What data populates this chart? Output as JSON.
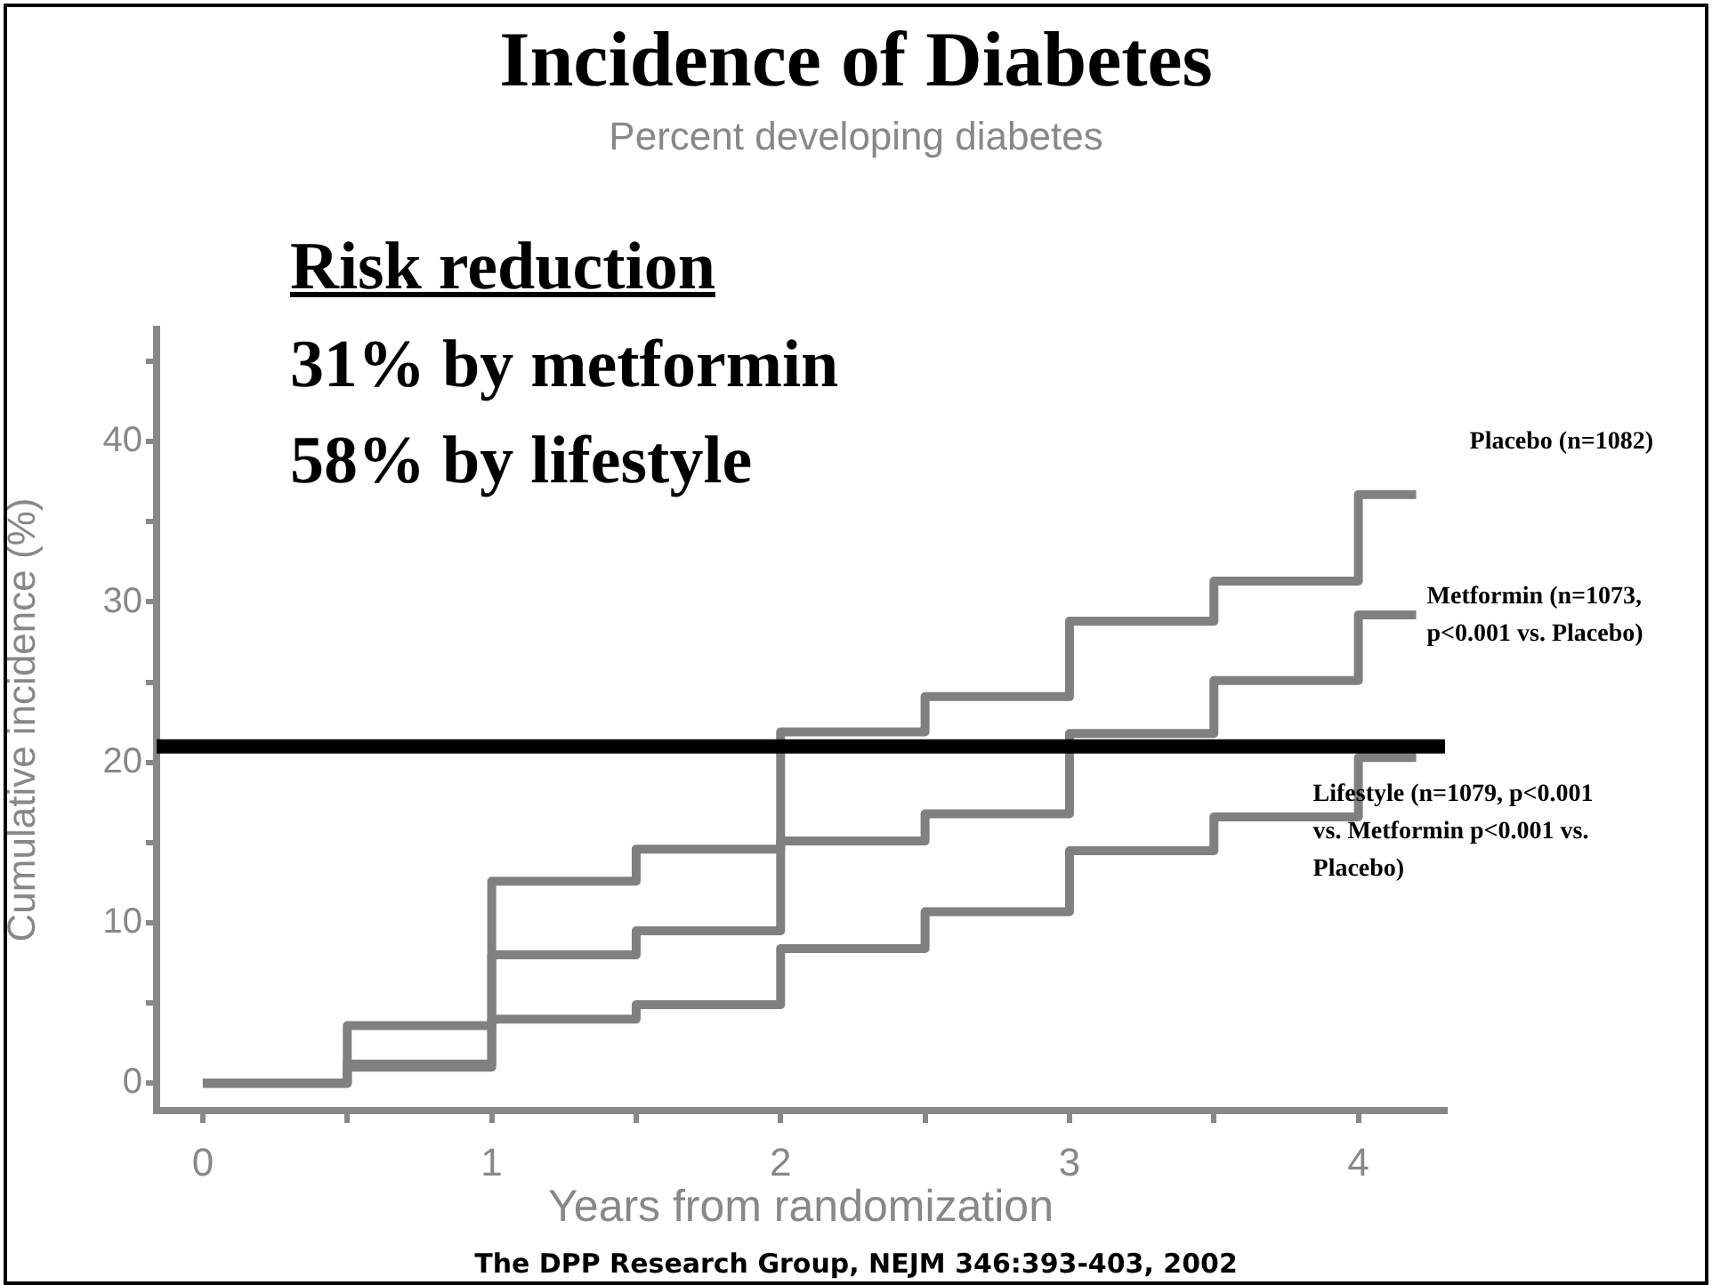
{
  "chart_data": {
    "type": "step",
    "title": "Incidence of Diabetes",
    "subtitle": "Percent developing diabetes",
    "xlabel": "Years from randomization",
    "ylabel": "Cumulative incidence (%)",
    "annotations": [
      "Risk reduction",
      "31% by metformin",
      "58% by lifestyle",
      "The DPP Research Group, NEJM 346:393-403, 2002"
    ],
    "x": [
      0,
      0.5,
      1,
      1.5,
      2,
      2.5,
      3,
      3.5,
      4,
      4.2
    ],
    "series": [
      {
        "name": "Placebo (n=1082)",
        "color": "#808080",
        "values": [
          0,
          3.6,
          12.6,
          14.6,
          21.9,
          24.1,
          28.8,
          31.3,
          36.7,
          36.7
        ]
      },
      {
        "name": "Metformin (n=1073, p<0.001 vs. Placebo)",
        "color": "#808080",
        "values": [
          0,
          1.2,
          8.0,
          9.5,
          15.1,
          16.8,
          21.8,
          25.1,
          29.2,
          29.2
        ]
      },
      {
        "name": "Lifestyle (n=1079, p<0.001 vs. Metformin p<0.001 vs. Placebo)",
        "color": "#808080",
        "values": [
          0,
          1.0,
          4.0,
          4.9,
          8.4,
          10.7,
          14.5,
          16.6,
          20.3,
          20.3
        ]
      }
    ],
    "ref_lines": [
      {
        "axis": "y",
        "value": 21,
        "color": "#000000"
      }
    ],
    "xlim": [
      -0.16,
      4.3
    ],
    "xticks": [
      0,
      {
        "value": 0.5,
        "label": null
      },
      1,
      {
        "value": 1.5,
        "label": null
      },
      2,
      {
        "value": 2.5,
        "label": null
      },
      3,
      {
        "value": 3.5,
        "label": null
      },
      4
    ],
    "ylim": [
      -1.7,
      47
    ],
    "yticks": [
      0,
      {
        "value": 5,
        "label": null
      },
      10,
      {
        "value": 15,
        "label": null
      },
      20,
      {
        "value": 25,
        "label": null
      },
      30,
      {
        "value": 35,
        "label": null
      },
      40,
      {
        "value": 45,
        "label": null
      }
    ],
    "grid": false,
    "legend": false,
    "marker": "none",
    "line_style": "solid"
  }
}
